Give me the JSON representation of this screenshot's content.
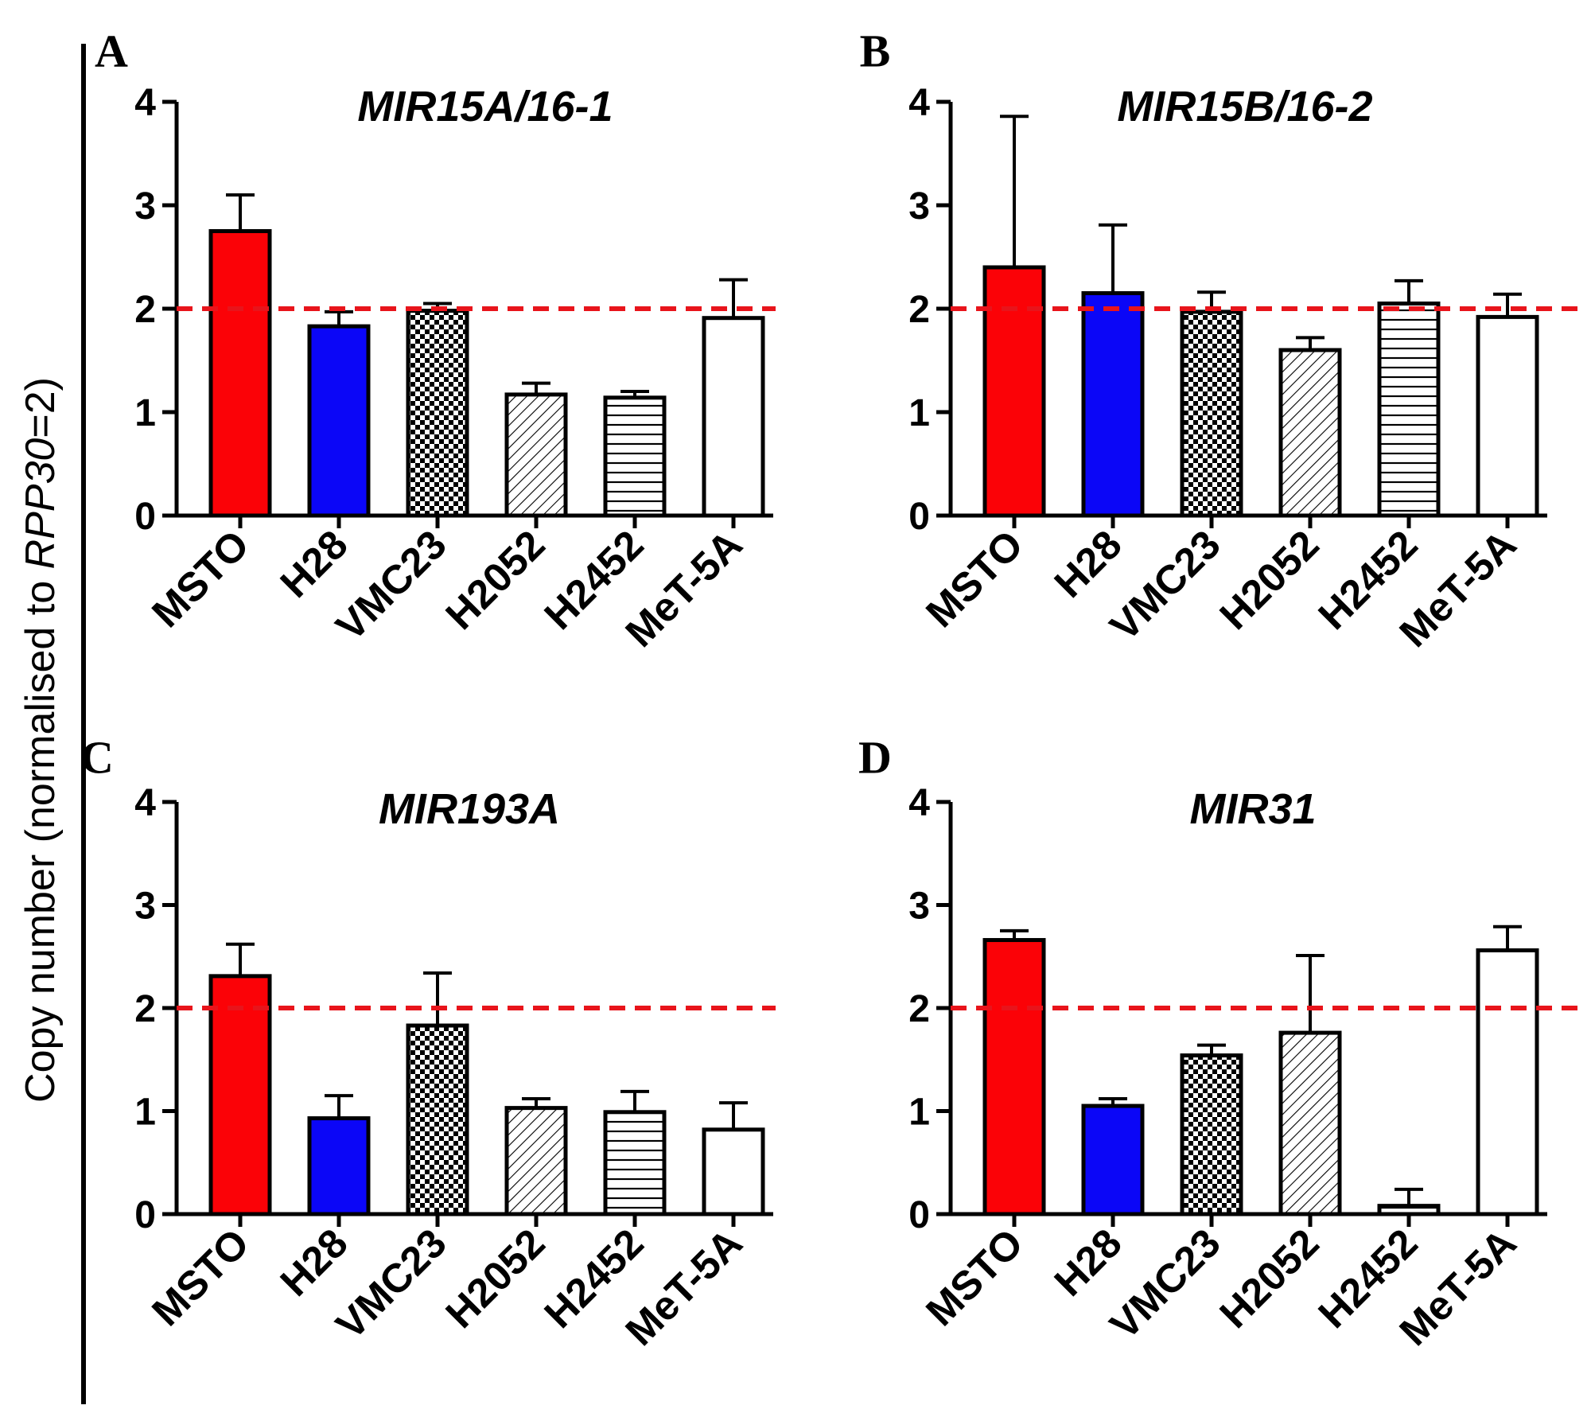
{
  "figure": {
    "ylabel_prefix": "Copy number (normalised to ",
    "ylabel_gene": "RPP30",
    "ylabel_suffix": "=2)",
    "reference_line": {
      "value": 2,
      "color": "#e8141b"
    }
  },
  "chart_data": [
    {
      "panel": "A",
      "type": "bar",
      "title": "MIR15A/16-1",
      "categories": [
        "MSTO",
        "H28",
        "VMC23",
        "H2052",
        "H2452",
        "MeT-5A"
      ],
      "values": [
        2.75,
        1.83,
        1.98,
        1.17,
        1.14,
        1.91
      ],
      "errors": [
        0.35,
        0.14,
        0.07,
        0.11,
        0.06,
        0.37
      ],
      "ylim": [
        0,
        4
      ],
      "yticks": [
        "0",
        "1",
        "2",
        "3",
        "4"
      ]
    },
    {
      "panel": "B",
      "type": "bar",
      "title": "MIR15B/16-2",
      "categories": [
        "MSTO",
        "H28",
        "VMC23",
        "H2052",
        "H2452",
        "MeT-5A"
      ],
      "values": [
        2.4,
        2.15,
        1.97,
        1.6,
        2.05,
        1.92
      ],
      "errors": [
        1.46,
        0.66,
        0.19,
        0.12,
        0.22,
        0.22
      ],
      "ylim": [
        0,
        4
      ],
      "yticks": [
        "0",
        "1",
        "2",
        "3",
        "4"
      ]
    },
    {
      "panel": "C",
      "type": "bar",
      "title": "MIR193A",
      "categories": [
        "MSTO",
        "H28",
        "VMC23",
        "H2052",
        "H2452",
        "MeT-5A"
      ],
      "values": [
        2.31,
        0.93,
        1.83,
        1.03,
        0.99,
        0.82
      ],
      "errors": [
        0.31,
        0.22,
        0.51,
        0.09,
        0.2,
        0.26
      ],
      "ylim": [
        0,
        4
      ],
      "yticks": [
        "0",
        "1",
        "2",
        "3",
        "4"
      ]
    },
    {
      "panel": "D",
      "type": "bar",
      "title": "MIR31",
      "categories": [
        "MSTO",
        "H28",
        "VMC23",
        "H2052",
        "H2452",
        "MeT-5A"
      ],
      "values": [
        2.66,
        1.05,
        1.54,
        1.76,
        0.08,
        2.56
      ],
      "errors": [
        0.09,
        0.07,
        0.1,
        0.75,
        0.16,
        0.23
      ],
      "ylim": [
        0,
        4
      ],
      "yticks": [
        "0",
        "1",
        "2",
        "3",
        "4"
      ]
    }
  ],
  "bar_styles": [
    {
      "fill": "#fb0207",
      "pattern": "solid"
    },
    {
      "fill": "#0b06f7",
      "pattern": "solid"
    },
    {
      "fill": "#ffffff",
      "pattern": "checker"
    },
    {
      "fill": "#ffffff",
      "pattern": "diagonal"
    },
    {
      "fill": "#ffffff",
      "pattern": "horizontal"
    },
    {
      "fill": "#ffffff",
      "pattern": "none"
    }
  ]
}
